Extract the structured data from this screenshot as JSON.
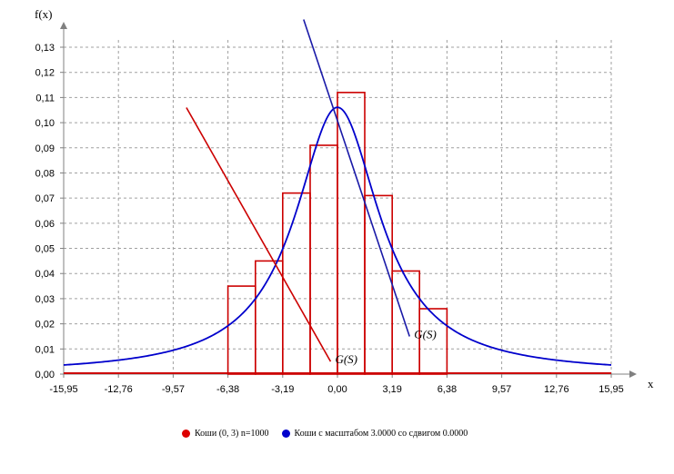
{
  "chart_data": {
    "type": "bar",
    "ylabel": "f(x)",
    "xlabel": "x",
    "xlim": [
      -15.95,
      15.95
    ],
    "ylim": [
      0,
      0.13
    ],
    "grid": true,
    "x_ticks": [
      "-15,95",
      "-12,76",
      "-9,57",
      "-6,38",
      "-3,19",
      "0,00",
      "3,19",
      "6,38",
      "9,57",
      "12,76",
      "15,95"
    ],
    "y_ticks": [
      "0,00",
      "0,01",
      "0,02",
      "0,03",
      "0,04",
      "0,05",
      "0,06",
      "0,07",
      "0,08",
      "0,09",
      "0,10",
      "0,11",
      "0,12",
      "0,13"
    ],
    "histogram": {
      "name": "Коши (0, 3) n=1000",
      "color": "#cc0000",
      "bins": [
        {
          "x0": -6.38,
          "x1": -4.78,
          "value": 0.035
        },
        {
          "x0": -4.78,
          "x1": -3.19,
          "value": 0.045
        },
        {
          "x0": -3.19,
          "x1": -1.59,
          "value": 0.072
        },
        {
          "x0": -1.59,
          "x1": 0.0,
          "value": 0.091
        },
        {
          "x0": 0.0,
          "x1": 1.59,
          "value": 0.112
        },
        {
          "x0": 1.59,
          "x1": 3.19,
          "value": 0.071
        },
        {
          "x0": 3.19,
          "x1": 4.78,
          "value": 0.041
        },
        {
          "x0": 4.78,
          "x1": 6.38,
          "value": 0.026
        }
      ]
    },
    "density": {
      "name": "Коши с масштабом 3.0000 со сдвигом 0.0000",
      "color": "#0000cc",
      "location": 0.0,
      "scale": 3.0
    },
    "gs_lines": [
      {
        "label": "G(S)",
        "color": "#cc0000",
        "points": [
          [
            -8.8,
            0.106
          ],
          [
            -0.4,
            0.005
          ]
        ]
      },
      {
        "label": "G(S)",
        "color": "#1a1aa8",
        "points": [
          [
            -1.97,
            0.141
          ],
          [
            4.2,
            0.015
          ]
        ]
      }
    ]
  },
  "legend": [
    {
      "label": "Коши (0, 3) n=1000",
      "color": "#dd0000"
    },
    {
      "label": "Коши с масштабом 3.0000 со сдвигом 0.0000",
      "color": "#0000cc"
    }
  ]
}
